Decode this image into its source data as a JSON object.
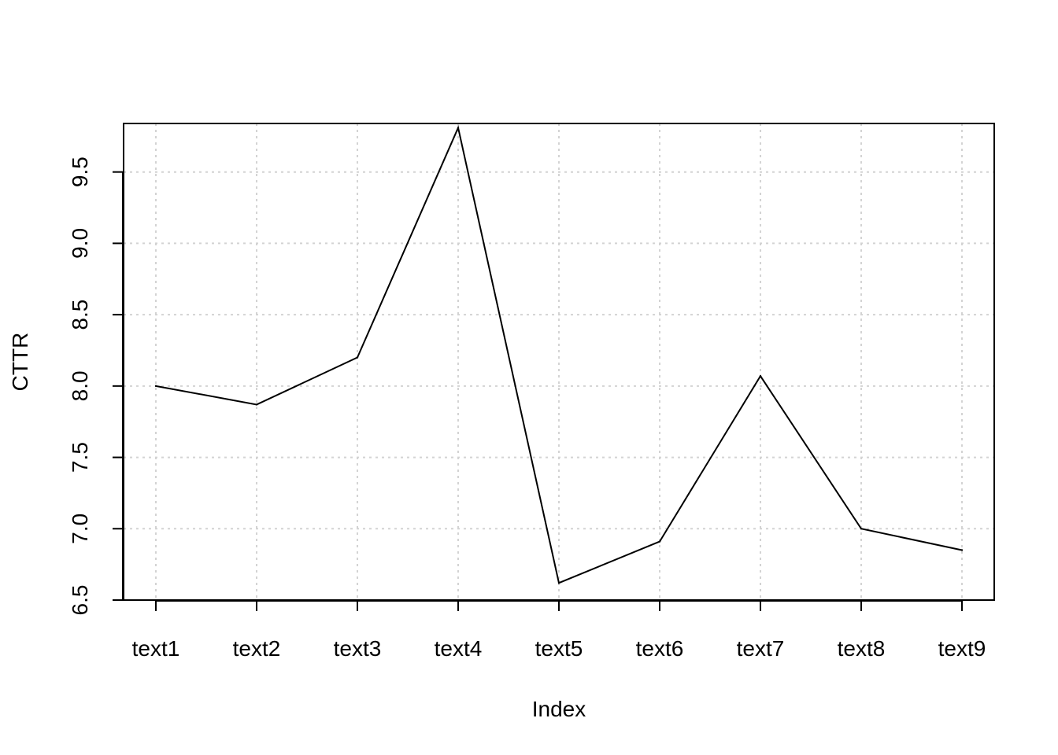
{
  "chart_data": {
    "type": "line",
    "title": "",
    "xlabel": "Index",
    "ylabel": "CTTR",
    "categories": [
      "text1",
      "text2",
      "text3",
      "text4",
      "text5",
      "text6",
      "text7",
      "text8",
      "text9"
    ],
    "series": [
      {
        "values": [
          8.0,
          7.87,
          8.2,
          9.81,
          6.62,
          6.91,
          8.07,
          7.0,
          6.85
        ]
      }
    ],
    "ylim": [
      6.5,
      9.84
    ],
    "yticks": [
      "6.5",
      "7.0",
      "7.5",
      "8.0",
      "8.5",
      "9.0",
      "9.5"
    ],
    "grid": true,
    "legend": "none",
    "colors": {
      "line": "#000000",
      "grid": "#d3d3d3",
      "axis": "#000000"
    }
  }
}
